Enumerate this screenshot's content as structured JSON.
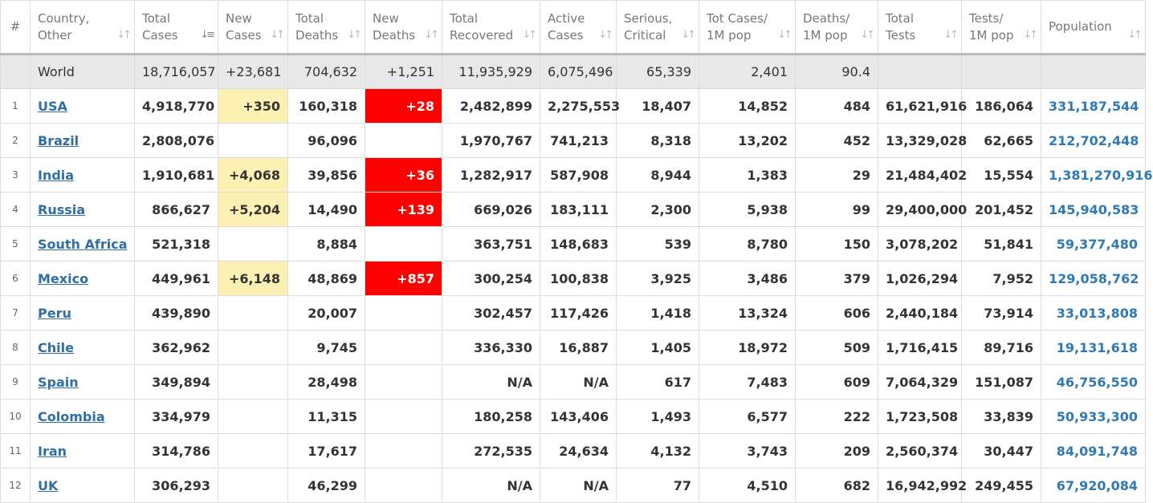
{
  "headers": [
    {
      "label": "#"
    },
    {
      "label": "Country,\nOther"
    },
    {
      "label": "Total\nCases"
    },
    {
      "label": "New\nCases"
    },
    {
      "label": "Total\nDeaths"
    },
    {
      "label": "New\nDeaths"
    },
    {
      "label": "Total\nRecovered"
    },
    {
      "label": "Active\nCases"
    },
    {
      "label": "Serious,\nCritical"
    },
    {
      "label": "Tot Cases/\n1M pop"
    },
    {
      "label": "Deaths/\n1M pop"
    },
    {
      "label": "Total\nTests"
    },
    {
      "label": "Tests/\n1M pop"
    },
    {
      "label": "Population"
    }
  ],
  "sort_icon": "sort-arrows-icon",
  "active_sort_icon": "sort-descending-icon",
  "colors": {
    "new_cases_highlight": "#fdf0b3",
    "new_deaths_highlight": "#ff0000",
    "link": "#2f6ea4",
    "world_row_bg": "#e8e8e8"
  },
  "world": {
    "name": "World",
    "total_cases": "18,716,057",
    "new_cases": "+23,681",
    "total_deaths": "704,632",
    "new_deaths": "+1,251",
    "total_recovered": "11,935,929",
    "active_cases": "6,075,496",
    "serious": "65,339",
    "cases_per_1m": "2,401",
    "deaths_per_1m": "90.4",
    "total_tests": "",
    "tests_per_1m": "",
    "population": ""
  },
  "rows": [
    {
      "num": "1",
      "country": "USA",
      "total_cases": "4,918,770",
      "new_cases": "+350",
      "total_deaths": "160,318",
      "new_deaths": "+28",
      "total_recovered": "2,482,899",
      "active_cases": "2,275,553",
      "serious": "18,407",
      "cases_per_1m": "14,852",
      "deaths_per_1m": "484",
      "total_tests": "61,621,916",
      "tests_per_1m": "186,064",
      "population": "331,187,544"
    },
    {
      "num": "2",
      "country": "Brazil",
      "total_cases": "2,808,076",
      "new_cases": "",
      "total_deaths": "96,096",
      "new_deaths": "",
      "total_recovered": "1,970,767",
      "active_cases": "741,213",
      "serious": "8,318",
      "cases_per_1m": "13,202",
      "deaths_per_1m": "452",
      "total_tests": "13,329,028",
      "tests_per_1m": "62,665",
      "population": "212,702,448"
    },
    {
      "num": "3",
      "country": "India",
      "total_cases": "1,910,681",
      "new_cases": "+4,068",
      "total_deaths": "39,856",
      "new_deaths": "+36",
      "total_recovered": "1,282,917",
      "active_cases": "587,908",
      "serious": "8,944",
      "cases_per_1m": "1,383",
      "deaths_per_1m": "29",
      "total_tests": "21,484,402",
      "tests_per_1m": "15,554",
      "population": "1,381,270,916"
    },
    {
      "num": "4",
      "country": "Russia",
      "total_cases": "866,627",
      "new_cases": "+5,204",
      "total_deaths": "14,490",
      "new_deaths": "+139",
      "total_recovered": "669,026",
      "active_cases": "183,111",
      "serious": "2,300",
      "cases_per_1m": "5,938",
      "deaths_per_1m": "99",
      "total_tests": "29,400,000",
      "tests_per_1m": "201,452",
      "population": "145,940,583"
    },
    {
      "num": "5",
      "country": "South Africa",
      "total_cases": "521,318",
      "new_cases": "",
      "total_deaths": "8,884",
      "new_deaths": "",
      "total_recovered": "363,751",
      "active_cases": "148,683",
      "serious": "539",
      "cases_per_1m": "8,780",
      "deaths_per_1m": "150",
      "total_tests": "3,078,202",
      "tests_per_1m": "51,841",
      "population": "59,377,480"
    },
    {
      "num": "6",
      "country": "Mexico",
      "total_cases": "449,961",
      "new_cases": "+6,148",
      "total_deaths": "48,869",
      "new_deaths": "+857",
      "total_recovered": "300,254",
      "active_cases": "100,838",
      "serious": "3,925",
      "cases_per_1m": "3,486",
      "deaths_per_1m": "379",
      "total_tests": "1,026,294",
      "tests_per_1m": "7,952",
      "population": "129,058,762"
    },
    {
      "num": "7",
      "country": "Peru",
      "total_cases": "439,890",
      "new_cases": "",
      "total_deaths": "20,007",
      "new_deaths": "",
      "total_recovered": "302,457",
      "active_cases": "117,426",
      "serious": "1,418",
      "cases_per_1m": "13,324",
      "deaths_per_1m": "606",
      "total_tests": "2,440,184",
      "tests_per_1m": "73,914",
      "population": "33,013,808"
    },
    {
      "num": "8",
      "country": "Chile",
      "total_cases": "362,962",
      "new_cases": "",
      "total_deaths": "9,745",
      "new_deaths": "",
      "total_recovered": "336,330",
      "active_cases": "16,887",
      "serious": "1,405",
      "cases_per_1m": "18,972",
      "deaths_per_1m": "509",
      "total_tests": "1,716,415",
      "tests_per_1m": "89,716",
      "population": "19,131,618"
    },
    {
      "num": "9",
      "country": "Spain",
      "total_cases": "349,894",
      "new_cases": "",
      "total_deaths": "28,498",
      "new_deaths": "",
      "total_recovered": "N/A",
      "active_cases": "N/A",
      "serious": "617",
      "cases_per_1m": "7,483",
      "deaths_per_1m": "609",
      "total_tests": "7,064,329",
      "tests_per_1m": "151,087",
      "population": "46,756,550"
    },
    {
      "num": "10",
      "country": "Colombia",
      "total_cases": "334,979",
      "new_cases": "",
      "total_deaths": "11,315",
      "new_deaths": "",
      "total_recovered": "180,258",
      "active_cases": "143,406",
      "serious": "1,493",
      "cases_per_1m": "6,577",
      "deaths_per_1m": "222",
      "total_tests": "1,723,508",
      "tests_per_1m": "33,839",
      "population": "50,933,300"
    },
    {
      "num": "11",
      "country": "Iran",
      "total_cases": "314,786",
      "new_cases": "",
      "total_deaths": "17,617",
      "new_deaths": "",
      "total_recovered": "272,535",
      "active_cases": "24,634",
      "serious": "4,132",
      "cases_per_1m": "3,743",
      "deaths_per_1m": "209",
      "total_tests": "2,560,374",
      "tests_per_1m": "30,447",
      "population": "84,091,748"
    },
    {
      "num": "12",
      "country": "UK",
      "total_cases": "306,293",
      "new_cases": "",
      "total_deaths": "46,299",
      "new_deaths": "",
      "total_recovered": "N/A",
      "active_cases": "N/A",
      "serious": "77",
      "cases_per_1m": "4,510",
      "deaths_per_1m": "682",
      "total_tests": "16,942,992",
      "tests_per_1m": "249,455",
      "population": "67,920,084"
    }
  ]
}
